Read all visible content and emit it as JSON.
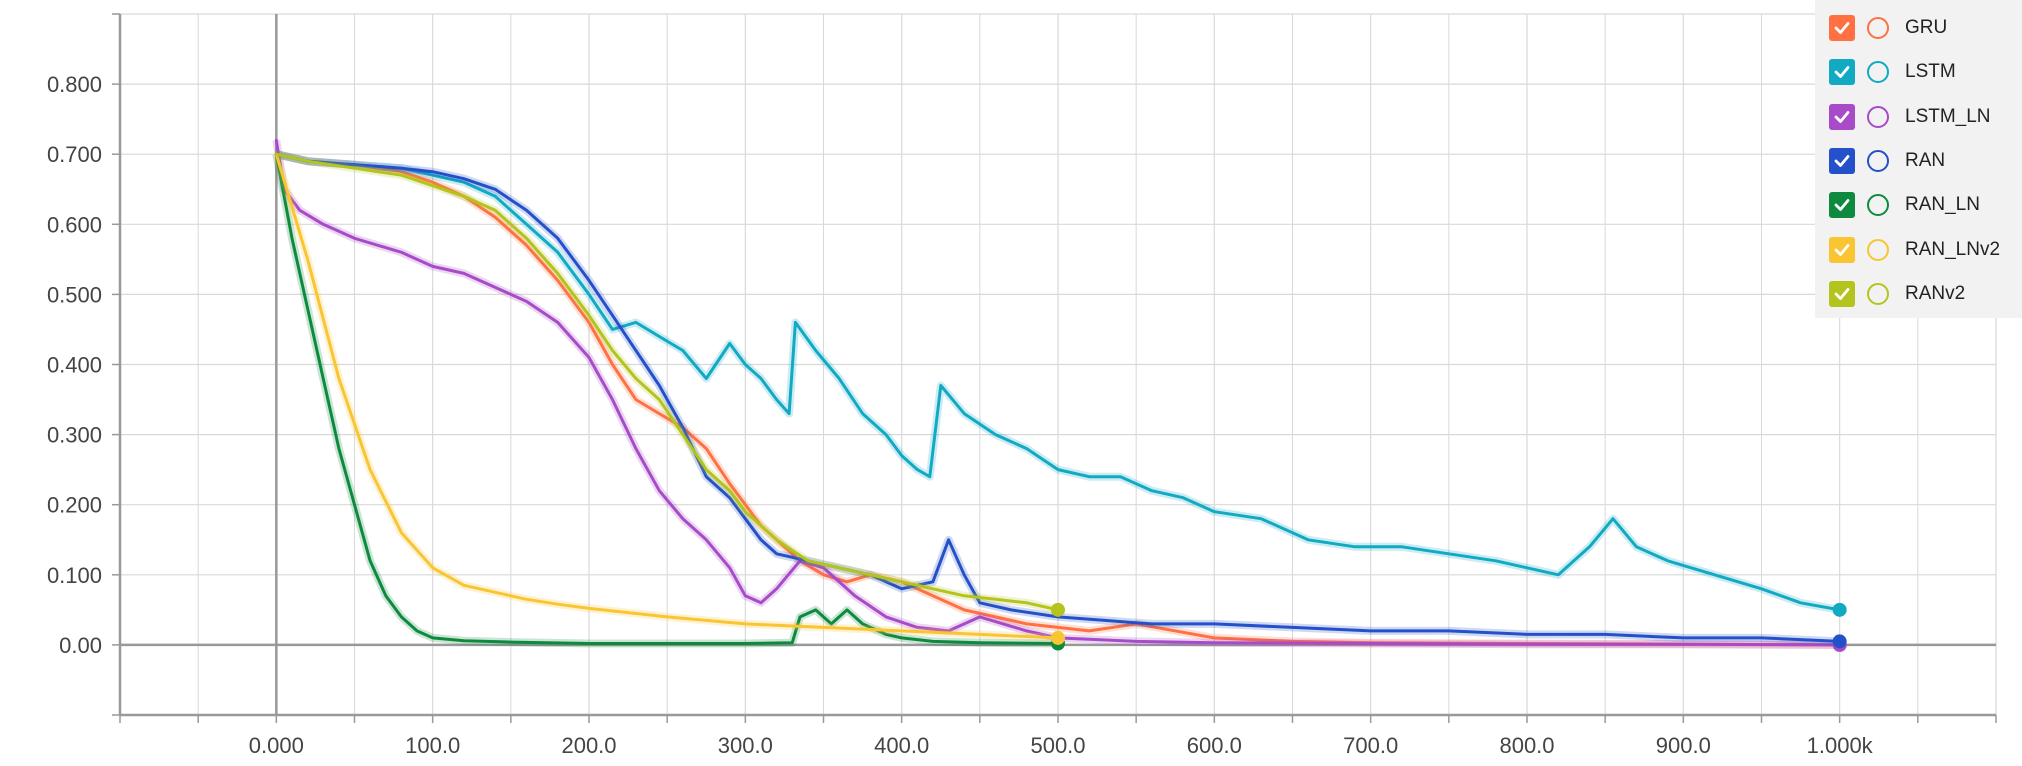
{
  "chart_data": {
    "type": "line",
    "xlim": [
      -100,
      1100
    ],
    "ylim": [
      -0.1,
      0.9
    ],
    "x_ticks": [
      0,
      100,
      200,
      300,
      400,
      500,
      600,
      700,
      800,
      900,
      1000
    ],
    "x_tick_labels": [
      "0.000",
      "100.0",
      "200.0",
      "300.0",
      "400.0",
      "500.0",
      "600.0",
      "700.0",
      "800.0",
      "900.0",
      "1.000k"
    ],
    "y_ticks": [
      0,
      0.1,
      0.2,
      0.3,
      0.4,
      0.5,
      0.6,
      0.7,
      0.8
    ],
    "y_tick_labels": [
      "0.00",
      "0.100",
      "0.200",
      "0.300",
      "0.400",
      "0.500",
      "0.600",
      "0.700",
      "0.800"
    ],
    "grid": true,
    "legend_position": "top-right",
    "series": [
      {
        "name": "GRU",
        "color": "#ff7043",
        "checked": true,
        "x": [
          0,
          20,
          50,
          80,
          100,
          120,
          140,
          160,
          180,
          200,
          215,
          230,
          245,
          260,
          275,
          290,
          300,
          310,
          320,
          335,
          350,
          365,
          380,
          400,
          420,
          440,
          460,
          480,
          500,
          520,
          550,
          600,
          650,
          700,
          800,
          900,
          1000
        ],
        "y": [
          0.7,
          0.69,
          0.685,
          0.675,
          0.66,
          0.64,
          0.61,
          0.57,
          0.52,
          0.46,
          0.4,
          0.35,
          0.33,
          0.31,
          0.28,
          0.23,
          0.2,
          0.17,
          0.15,
          0.12,
          0.1,
          0.09,
          0.1,
          0.09,
          0.07,
          0.05,
          0.04,
          0.03,
          0.025,
          0.02,
          0.03,
          0.01,
          0.005,
          0.003,
          0.002,
          0.001,
          0.0
        ]
      },
      {
        "name": "LSTM",
        "color": "#12a9c3",
        "checked": true,
        "x": [
          0,
          20,
          50,
          80,
          100,
          120,
          140,
          160,
          180,
          200,
          215,
          230,
          245,
          260,
          275,
          290,
          300,
          310,
          320,
          328,
          332,
          345,
          360,
          375,
          390,
          400,
          410,
          418,
          425,
          440,
          460,
          480,
          500,
          520,
          540,
          560,
          580,
          600,
          630,
          660,
          690,
          720,
          750,
          780,
          800,
          820,
          840,
          855,
          870,
          890,
          920,
          950,
          975,
          1000
        ],
        "y": [
          0.7,
          0.69,
          0.685,
          0.68,
          0.67,
          0.66,
          0.64,
          0.6,
          0.56,
          0.5,
          0.45,
          0.46,
          0.44,
          0.42,
          0.38,
          0.43,
          0.4,
          0.38,
          0.35,
          0.33,
          0.46,
          0.42,
          0.38,
          0.33,
          0.3,
          0.27,
          0.25,
          0.24,
          0.37,
          0.33,
          0.3,
          0.28,
          0.25,
          0.24,
          0.24,
          0.22,
          0.21,
          0.19,
          0.18,
          0.15,
          0.14,
          0.14,
          0.13,
          0.12,
          0.11,
          0.1,
          0.14,
          0.18,
          0.14,
          0.12,
          0.1,
          0.08,
          0.06,
          0.05
        ]
      },
      {
        "name": "LSTM_LN",
        "color": "#a84bc9",
        "checked": true,
        "x": [
          0,
          5,
          15,
          30,
          50,
          80,
          100,
          120,
          140,
          160,
          180,
          200,
          215,
          230,
          245,
          260,
          275,
          290,
          300,
          310,
          320,
          335,
          350,
          370,
          390,
          410,
          430,
          450,
          480,
          500,
          550,
          600,
          700,
          800,
          900,
          1000
        ],
        "y": [
          0.72,
          0.65,
          0.62,
          0.6,
          0.58,
          0.56,
          0.54,
          0.53,
          0.51,
          0.49,
          0.46,
          0.41,
          0.35,
          0.28,
          0.22,
          0.18,
          0.15,
          0.11,
          0.07,
          0.06,
          0.08,
          0.12,
          0.11,
          0.07,
          0.04,
          0.025,
          0.02,
          0.04,
          0.02,
          0.01,
          0.005,
          0.003,
          0.002,
          0.001,
          0.001,
          0.0
        ]
      },
      {
        "name": "RAN",
        "color": "#2451c9",
        "checked": true,
        "x": [
          0,
          20,
          50,
          80,
          100,
          120,
          140,
          160,
          180,
          200,
          215,
          230,
          245,
          260,
          275,
          290,
          300,
          310,
          320,
          340,
          360,
          380,
          400,
          420,
          430,
          440,
          450,
          470,
          500,
          530,
          560,
          600,
          650,
          700,
          750,
          800,
          850,
          900,
          950,
          1000
        ],
        "y": [
          0.7,
          0.69,
          0.685,
          0.68,
          0.675,
          0.665,
          0.65,
          0.62,
          0.58,
          0.52,
          0.47,
          0.42,
          0.37,
          0.31,
          0.24,
          0.21,
          0.18,
          0.15,
          0.13,
          0.12,
          0.11,
          0.1,
          0.08,
          0.09,
          0.15,
          0.1,
          0.06,
          0.05,
          0.04,
          0.035,
          0.03,
          0.03,
          0.025,
          0.02,
          0.02,
          0.015,
          0.015,
          0.01,
          0.01,
          0.005
        ]
      },
      {
        "name": "RAN_LN",
        "color": "#0d8a3e",
        "checked": true,
        "x": [
          0,
          10,
          20,
          30,
          40,
          50,
          60,
          70,
          80,
          90,
          100,
          120,
          150,
          200,
          250,
          300,
          330,
          335,
          345,
          355,
          365,
          375,
          390,
          400,
          420,
          450,
          500
        ],
        "y": [
          0.7,
          0.58,
          0.48,
          0.38,
          0.28,
          0.2,
          0.12,
          0.07,
          0.04,
          0.02,
          0.01,
          0.006,
          0.004,
          0.002,
          0.002,
          0.002,
          0.003,
          0.04,
          0.05,
          0.03,
          0.05,
          0.03,
          0.015,
          0.01,
          0.005,
          0.003,
          0.002
        ]
      },
      {
        "name": "RAN_LNv2",
        "color": "#f9c533",
        "checked": true,
        "x": [
          0,
          20,
          40,
          60,
          80,
          100,
          120,
          140,
          160,
          180,
          200,
          250,
          300,
          350,
          400,
          450,
          500
        ],
        "y": [
          0.7,
          0.55,
          0.38,
          0.25,
          0.16,
          0.11,
          0.085,
          0.075,
          0.065,
          0.058,
          0.052,
          0.04,
          0.03,
          0.025,
          0.02,
          0.015,
          0.01
        ]
      },
      {
        "name": "RANv2",
        "color": "#b4c41f",
        "checked": true,
        "x": [
          0,
          20,
          50,
          80,
          100,
          120,
          140,
          160,
          180,
          200,
          215,
          230,
          245,
          260,
          275,
          290,
          300,
          310,
          320,
          340,
          360,
          380,
          400,
          420,
          440,
          460,
          480,
          500
        ],
        "y": [
          0.7,
          0.69,
          0.68,
          0.67,
          0.655,
          0.64,
          0.62,
          0.58,
          0.53,
          0.47,
          0.42,
          0.38,
          0.35,
          0.3,
          0.25,
          0.22,
          0.19,
          0.17,
          0.15,
          0.12,
          0.11,
          0.1,
          0.09,
          0.08,
          0.07,
          0.065,
          0.06,
          0.05
        ]
      }
    ]
  }
}
